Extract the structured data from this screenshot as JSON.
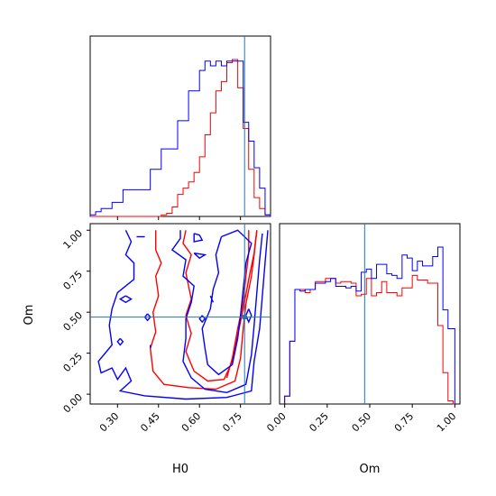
{
  "colors": {
    "series_a": "#ff0000",
    "series_b": "#0000ff",
    "truth": "#1f77b4"
  },
  "chart_data": [
    {
      "type": "histogram",
      "panel": "top-left",
      "xlim": [
        0.2,
        0.86
      ],
      "truth_x": 0.765,
      "bins": [
        0.2,
        0.22,
        0.24,
        0.26,
        0.28,
        0.3,
        0.32,
        0.34,
        0.36,
        0.38,
        0.4,
        0.42,
        0.44,
        0.46,
        0.48,
        0.5,
        0.52,
        0.54,
        0.56,
        0.58,
        0.6,
        0.62,
        0.64,
        0.66,
        0.68,
        0.7,
        0.72,
        0.74,
        0.76,
        0.78,
        0.8,
        0.82,
        0.84,
        0.86
      ],
      "series": [
        {
          "color": "red",
          "values": [
            0,
            0,
            0,
            0,
            0,
            0,
            0,
            0,
            0,
            0,
            0,
            0,
            0,
            0.01,
            0.02,
            0.06,
            0.14,
            0.18,
            0.22,
            0.28,
            0.38,
            0.52,
            0.66,
            0.8,
            0.86,
            0.98,
            1.0,
            0.82,
            0.56,
            0.3,
            0.12,
            0.05,
            0.01
          ]
        },
        {
          "color": "blue",
          "values": [
            0.01,
            0.03,
            0.05,
            0.05,
            0.09,
            0.09,
            0.17,
            0.17,
            0.17,
            0.17,
            0.17,
            0.3,
            0.3,
            0.43,
            0.43,
            0.43,
            0.61,
            0.61,
            0.8,
            0.8,
            0.93,
            0.99,
            0.96,
            0.99,
            0.96,
            0.99,
            0.99,
            0.99,
            0.6,
            0.48,
            0.31,
            0.18,
            0.01
          ]
        }
      ]
    },
    {
      "type": "contour",
      "panel": "bottom-left",
      "xlabel": "H0",
      "ylabel": "Om",
      "xlim": [
        0.2,
        0.86
      ],
      "ylim": [
        -0.06,
        1.04
      ],
      "xticks": [
        "0.30",
        "0.45",
        "0.60",
        "0.75"
      ],
      "xtick_values": [
        0.3,
        0.45,
        0.6,
        0.75
      ],
      "yticks": [
        "0.00",
        "0.25",
        "0.50",
        "0.75",
        "1.00"
      ],
      "ytick_values": [
        0.0,
        0.25,
        0.5,
        0.75,
        1.0
      ],
      "truth": {
        "x": 0.765,
        "y": 0.47
      },
      "series": [
        {
          "color": "red",
          "contours": [
            [
              [
                0.44,
                1.0
              ],
              [
                0.44,
                0.88
              ],
              [
                0.46,
                0.8
              ],
              [
                0.44,
                0.72
              ],
              [
                0.45,
                0.6
              ],
              [
                0.43,
                0.5
              ],
              [
                0.44,
                0.38
              ],
              [
                0.42,
                0.28
              ],
              [
                0.43,
                0.14
              ],
              [
                0.47,
                0.06
              ],
              [
                0.56,
                0.04
              ],
              [
                0.66,
                0.03
              ],
              [
                0.73,
                0.08
              ],
              [
                0.75,
                0.22
              ],
              [
                0.76,
                0.4
              ],
              [
                0.77,
                0.55
              ],
              [
                0.79,
                0.72
              ],
              [
                0.8,
                0.85
              ],
              [
                0.81,
                1.0
              ]
            ],
            [
              [
                0.55,
                1.0
              ],
              [
                0.54,
                0.92
              ],
              [
                0.57,
                0.85
              ],
              [
                0.55,
                0.74
              ],
              [
                0.56,
                0.66
              ],
              [
                0.57,
                0.58
              ],
              [
                0.55,
                0.48
              ],
              [
                0.57,
                0.37
              ],
              [
                0.55,
                0.26
              ],
              [
                0.58,
                0.14
              ],
              [
                0.63,
                0.08
              ],
              [
                0.69,
                0.09
              ],
              [
                0.72,
                0.2
              ],
              [
                0.74,
                0.36
              ],
              [
                0.76,
                0.52
              ],
              [
                0.78,
                0.7
              ],
              [
                0.8,
                0.86
              ],
              [
                0.81,
                1.0
              ]
            ],
            [
              [
                0.78,
                1.0
              ],
              [
                0.78,
                0.86
              ],
              [
                0.77,
                0.72
              ],
              [
                0.76,
                0.56
              ],
              [
                0.74,
                0.4
              ],
              [
                0.72,
                0.22
              ],
              [
                0.7,
                0.1
              ]
            ]
          ]
        },
        {
          "color": "blue",
          "contours": [
            [
              [
                0.33,
                1.0
              ],
              [
                0.35,
                0.93
              ],
              [
                0.33,
                0.85
              ],
              [
                0.36,
                0.8
              ],
              [
                0.36,
                0.7
              ],
              [
                0.3,
                0.62
              ],
              [
                0.28,
                0.52
              ],
              [
                0.27,
                0.42
              ],
              [
                0.28,
                0.3
              ],
              [
                0.23,
                0.2
              ],
              [
                0.24,
                0.13
              ],
              [
                0.28,
                0.16
              ],
              [
                0.3,
                0.09
              ],
              [
                0.33,
                0.16
              ],
              [
                0.35,
                0.08
              ],
              [
                0.31,
                0.02
              ],
              [
                0.4,
                -0.01
              ],
              [
                0.55,
                -0.03
              ],
              [
                0.7,
                -0.02
              ],
              [
                0.79,
                0.02
              ],
              [
                0.8,
                0.2
              ],
              [
                0.82,
                0.4
              ],
              [
                0.83,
                0.6
              ],
              [
                0.84,
                0.8
              ],
              [
                0.85,
                1.0
              ]
            ],
            [
              [
                0.53,
                1.0
              ],
              [
                0.53,
                0.95
              ],
              [
                0.5,
                0.88
              ],
              [
                0.55,
                0.82
              ],
              [
                0.54,
                0.72
              ],
              [
                0.58,
                0.66
              ],
              [
                0.57,
                0.56
              ],
              [
                0.55,
                0.46
              ],
              [
                0.55,
                0.34
              ],
              [
                0.54,
                0.2
              ],
              [
                0.57,
                0.1
              ],
              [
                0.62,
                0.03
              ],
              [
                0.7,
                0.01
              ],
              [
                0.77,
                0.06
              ],
              [
                0.79,
                0.24
              ],
              [
                0.8,
                0.42
              ],
              [
                0.81,
                0.62
              ],
              [
                0.82,
                0.82
              ],
              [
                0.83,
                0.98
              ]
            ],
            [
              [
                0.68,
                0.96
              ],
              [
                0.66,
                0.85
              ],
              [
                0.67,
                0.74
              ],
              [
                0.65,
                0.64
              ],
              [
                0.64,
                0.52
              ],
              [
                0.61,
                0.4
              ],
              [
                0.62,
                0.28
              ],
              [
                0.63,
                0.18
              ],
              [
                0.67,
                0.12
              ],
              [
                0.72,
                0.18
              ],
              [
                0.74,
                0.34
              ],
              [
                0.75,
                0.48
              ],
              [
                0.76,
                0.64
              ],
              [
                0.77,
                0.8
              ],
              [
                0.79,
                0.92
              ],
              [
                0.74,
                1.0
              ],
              [
                0.68,
                0.96
              ]
            ],
            [
              [
                0.58,
                0.98
              ],
              [
                0.6,
                0.97
              ],
              [
                0.61,
                0.94
              ],
              [
                0.58,
                0.93
              ],
              [
                0.58,
                0.98
              ]
            ],
            [
              [
                0.37,
                0.96
              ],
              [
                0.4,
                0.96
              ]
            ],
            [
              [
                0.33,
                0.6
              ],
              [
                0.35,
                0.58
              ],
              [
                0.33,
                0.56
              ],
              [
                0.31,
                0.58
              ],
              [
                0.33,
                0.6
              ]
            ],
            [
              [
                0.41,
                0.49
              ],
              [
                0.42,
                0.47
              ],
              [
                0.41,
                0.45
              ],
              [
                0.4,
                0.47
              ],
              [
                0.41,
                0.49
              ]
            ],
            [
              [
                0.31,
                0.34
              ],
              [
                0.32,
                0.32
              ],
              [
                0.31,
                0.3
              ],
              [
                0.3,
                0.32
              ],
              [
                0.31,
                0.34
              ]
            ],
            [
              [
                0.42,
                0.3
              ],
              [
                0.42,
                0.28
              ]
            ],
            [
              [
                0.58,
                0.86
              ],
              [
                0.62,
                0.85
              ],
              [
                0.6,
                0.83
              ],
              [
                0.58,
                0.86
              ]
            ],
            [
              [
                0.64,
                0.6
              ],
              [
                0.65,
                0.56
              ]
            ],
            [
              [
                0.61,
                0.48
              ],
              [
                0.62,
                0.46
              ],
              [
                0.61,
                0.44
              ],
              [
                0.6,
                0.46
              ],
              [
                0.61,
                0.48
              ]
            ],
            [
              [
                0.78,
                0.52
              ],
              [
                0.79,
                0.48
              ],
              [
                0.78,
                0.44
              ],
              [
                0.77,
                0.48
              ],
              [
                0.78,
                0.52
              ]
            ]
          ]
        }
      ]
    },
    {
      "type": "histogram",
      "panel": "bottom-right",
      "xlabel": "Om",
      "xlim": [
        -0.03,
        1.03
      ],
      "xticks": [
        "0.00",
        "0.25",
        "0.50",
        "0.75",
        "1.00"
      ],
      "xtick_values": [
        0.0,
        0.25,
        0.5,
        0.75,
        1.0
      ],
      "truth_x": 0.47,
      "bins": [
        0.0,
        0.03,
        0.06,
        0.09,
        0.12,
        0.15,
        0.18,
        0.21,
        0.24,
        0.27,
        0.3,
        0.33,
        0.36,
        0.39,
        0.42,
        0.45,
        0.48,
        0.51,
        0.54,
        0.57,
        0.6,
        0.63,
        0.66,
        0.69,
        0.72,
        0.75,
        0.78,
        0.81,
        0.84,
        0.87,
        0.9,
        0.93,
        0.96,
        0.99,
        1.0
      ],
      "series": [
        {
          "color": "red",
          "values": [
            0.05,
            0.4,
            0.73,
            0.73,
            0.71,
            0.73,
            0.78,
            0.78,
            0.8,
            0.8,
            0.77,
            0.78,
            0.78,
            0.77,
            0.69,
            0.7,
            0.8,
            0.69,
            0.71,
            0.78,
            0.71,
            0.71,
            0.69,
            0.74,
            0.74,
            0.82,
            0.79,
            0.79,
            0.77,
            0.77,
            0.5,
            0.2,
            0.02,
            0.0
          ]
        },
        {
          "color": "blue",
          "values": [
            0.05,
            0.4,
            0.73,
            0.72,
            0.73,
            0.73,
            0.77,
            0.77,
            0.78,
            0.8,
            0.75,
            0.75,
            0.74,
            0.75,
            0.72,
            0.84,
            0.86,
            0.8,
            0.89,
            0.89,
            0.83,
            0.82,
            0.8,
            0.95,
            0.93,
            0.85,
            0.91,
            0.88,
            0.88,
            0.94,
            1.0,
            0.6,
            0.48,
            0.48
          ]
        }
      ]
    }
  ]
}
